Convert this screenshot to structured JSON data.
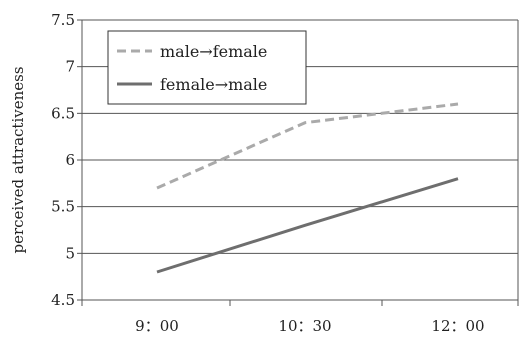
{
  "chart_data": {
    "type": "line",
    "categories": [
      "9：00",
      "10：30",
      "12：00"
    ],
    "series": [
      {
        "name": "male→female",
        "values": [
          5.7,
          6.4,
          6.6
        ],
        "color": "#aaaaaa",
        "dash": true
      },
      {
        "name": "female→male",
        "values": [
          4.8,
          5.3,
          5.8
        ],
        "color": "#6e6e6e",
        "dash": false
      }
    ],
    "ylabel": "perceived attractiveness",
    "ylim": [
      4.5,
      7.5
    ],
    "yticks": [
      "4.5",
      "5",
      "5.5",
      "6",
      "6.5",
      "7",
      "7.5"
    ],
    "grid": true,
    "legend": "top-left"
  }
}
